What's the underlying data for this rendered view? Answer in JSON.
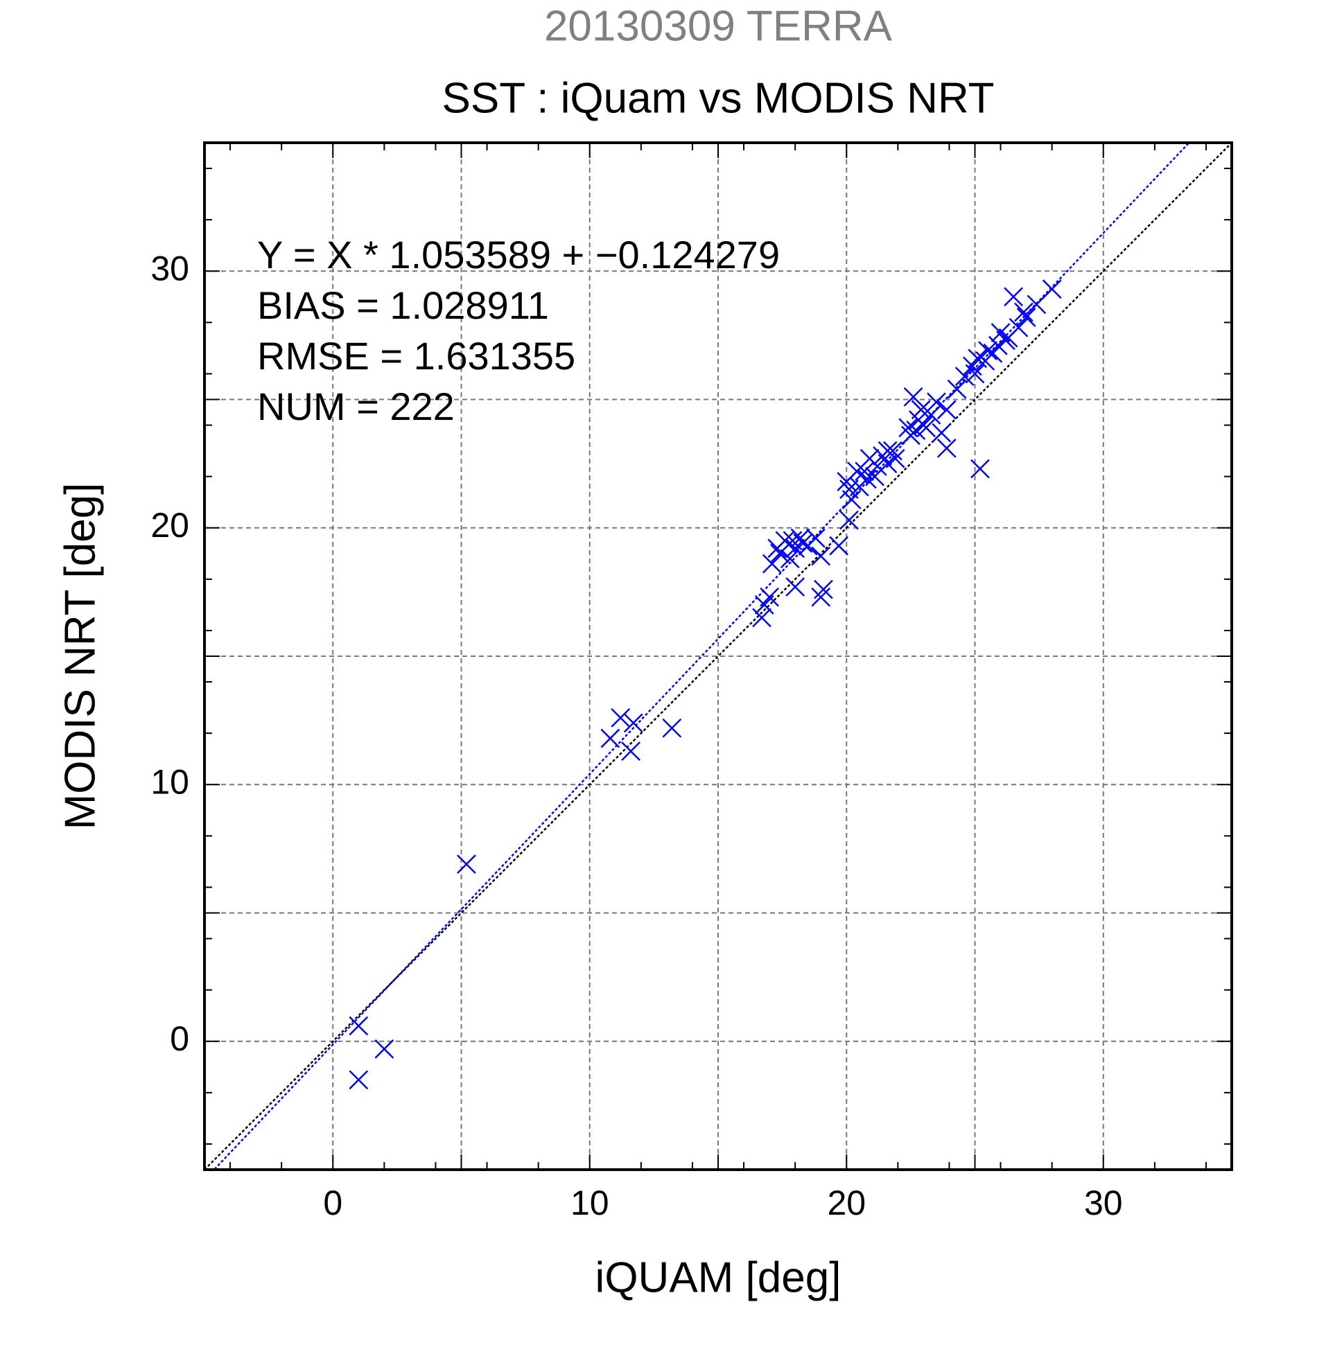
{
  "chart_data": {
    "type": "scatter",
    "title": "20130309 TERRA",
    "subtitle": "SST : iQuam vs MODIS NRT",
    "x_label": "iQUAM [deg]",
    "y_label": "MODIS NRT [deg]",
    "annotations": [
      "Y = X * 1.053589 + −0.124279",
      "BIAS = 1.028911",
      "RMSE = 1.631355",
      "NUM = 222"
    ],
    "color": "#0000ff",
    "x": [
      1.0,
      1.0,
      2.0,
      5.2,
      10.8,
      11.2,
      11.6,
      11.7,
      13.2,
      16.7,
      16.8,
      17.0,
      17.1,
      17.4,
      17.6,
      17.8,
      18.0,
      18.0,
      18.2,
      18.5,
      18.8,
      19.0,
      19.0,
      19.1,
      19.7,
      20.1,
      17.3,
      17.9,
      18.3,
      20.0,
      20.2,
      20.5,
      20.7,
      20.9,
      21.1,
      21.4,
      21.6,
      21.9,
      20.4,
      20.1,
      21.6,
      21.2,
      21.8,
      20.8,
      22.6,
      22.4,
      22.8,
      22.9,
      23.1,
      23.3,
      23.5,
      23.7,
      23.9,
      23.9,
      24.3,
      24.6,
      25.2,
      22.7,
      23.0,
      22.5,
      24.9,
      25.1,
      25.4,
      25.7,
      25.9,
      26.2,
      26.5,
      26.7,
      27.0,
      27.4,
      28.0,
      26.0,
      26.3,
      25.0,
      25.5,
      26.9
    ],
    "values": [
      0.6,
      -1.5,
      -0.3,
      6.9,
      11.8,
      12.6,
      11.3,
      12.4,
      12.2,
      16.5,
      17.0,
      17.3,
      18.6,
      19.0,
      19.5,
      18.8,
      19.2,
      17.7,
      19.6,
      19.3,
      19.6,
      18.9,
      17.3,
      17.6,
      19.3,
      20.3,
      19.2,
      19.5,
      19.4,
      21.8,
      21.1,
      21.6,
      22.2,
      22.7,
      22.0,
      22.8,
      23.0,
      22.7,
      22.2,
      21.5,
      22.5,
      22.4,
      23.0,
      21.9,
      25.1,
      23.9,
      24.2,
      24.6,
      23.9,
      24.4,
      24.9,
      23.7,
      23.1,
      24.6,
      25.4,
      25.9,
      22.3,
      23.8,
      24.0,
      23.6,
      26.3,
      26.6,
      26.5,
      26.8,
      27.1,
      27.3,
      29.0,
      27.8,
      28.2,
      28.7,
      29.3,
      27.6,
      27.4,
      26.0,
      26.9,
      28.4
    ],
    "reference_lines": [
      {
        "slope": 1,
        "intercept": 0,
        "color": "#000000"
      },
      {
        "slope": 1.053589,
        "intercept": -0.124279,
        "color": "#0000ff"
      }
    ],
    "xlim": [
      -5,
      35
    ],
    "ylim": [
      -5,
      35
    ],
    "xticks": [
      0,
      10,
      20,
      30
    ],
    "yticks": [
      0,
      10,
      20,
      30
    ],
    "grid_values": [
      0,
      5,
      10,
      15,
      20,
      25,
      30
    ],
    "minor_ticks": [
      -4,
      -2,
      2,
      4,
      6,
      8,
      12,
      14,
      16,
      18,
      22,
      24,
      26,
      28,
      32,
      34
    ],
    "grid": true
  }
}
